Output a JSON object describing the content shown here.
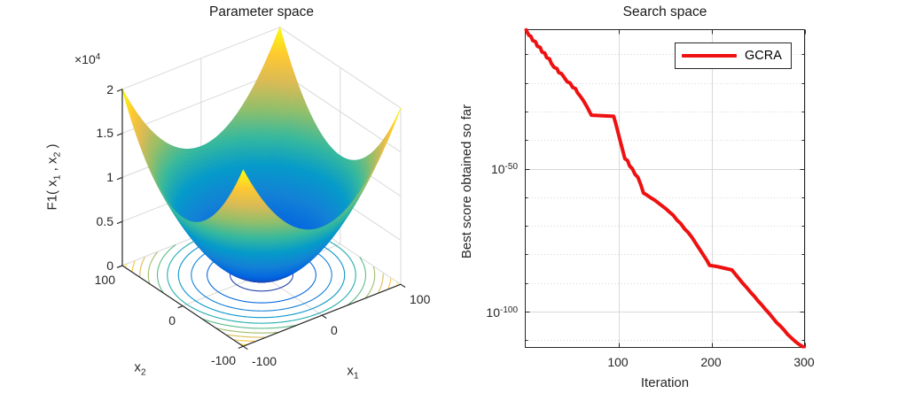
{
  "figure": {
    "background": "#ffffff"
  },
  "style": {
    "axis_color": "#262626",
    "grid_color": "#d9d9d9",
    "minor_grid_color": "#d4d4d4",
    "text_color": "#262626",
    "series_red": "#ee1111"
  },
  "left_plot": {
    "title": "Parameter space",
    "z_offset_label": {
      "base": "×10",
      "exp": "4"
    },
    "zlabel": {
      "p1": "F1( x",
      "sub1": "1",
      "p2": " , x",
      "sub2": "2",
      "p3": " )"
    },
    "x1label": {
      "base": "x",
      "sub": "1"
    },
    "x2label": {
      "base": "x",
      "sub": "2"
    },
    "z_ticks": [
      {
        "label": "0"
      },
      {
        "label": "0.5"
      },
      {
        "label": "1"
      },
      {
        "label": "1.5"
      },
      {
        "label": "2"
      }
    ],
    "x1_ticks": [
      {
        "label": "-100"
      },
      {
        "label": "0"
      },
      {
        "label": "100"
      }
    ],
    "x2_ticks": [
      {
        "label": "100"
      },
      {
        "label": "0"
      },
      {
        "label": "-100"
      }
    ]
  },
  "right_plot": {
    "title": "Search space",
    "xlabel": "Iteration",
    "ylabel": "Best score obtained so far",
    "x_ticks": [
      {
        "label": "100"
      },
      {
        "label": "200"
      },
      {
        "label": "300"
      }
    ],
    "y_ticks": [
      {
        "base": "10",
        "sup": "-50"
      },
      {
        "base": "10",
        "sup": "-100"
      }
    ],
    "legend": {
      "entries": [
        {
          "label": "GCRA",
          "color": "#ee1111"
        }
      ]
    }
  },
  "chart_data": [
    {
      "type": "surface3d",
      "title": "Parameter space",
      "function": "F1(x1,x2) = x1^2 + x2^2",
      "x1_range": [
        -100,
        100
      ],
      "x2_range": [
        -100,
        100
      ],
      "z_range": [
        0,
        20000
      ],
      "z_ticks": [
        0,
        5000,
        10000,
        15000,
        20000
      ],
      "x1_axis_ticks": [
        -100,
        0,
        100
      ],
      "x2_axis_ticks": [
        -100,
        0,
        100
      ],
      "view": {
        "azimuth": -37.5,
        "elevation": 30
      },
      "colormap": "parula",
      "colormap_stops": [
        "#352a87",
        "#0363e1",
        "#1481d6",
        "#069bca",
        "#38b99d",
        "#92bf6b",
        "#dabb56",
        "#fec832",
        "#f9fb0e"
      ],
      "floor_contour_levels": [
        1000,
        3000,
        5000,
        7000,
        9000,
        11000,
        13000,
        15000,
        17000,
        19000
      ],
      "grid": true
    },
    {
      "type": "line",
      "title": "Search space",
      "xlabel": "Iteration",
      "ylabel": "Best score obtained so far",
      "y_scale": "log10",
      "x_range": [
        0,
        300
      ],
      "y_range_exp": [
        -112.5,
        -1.4
      ],
      "x_major_ticks": [
        100,
        200,
        300
      ],
      "y_major_ticks_exp": [
        -50,
        -100
      ],
      "y_minor_ticks_exp": [
        -10,
        -20,
        -30,
        -40,
        -60,
        -70,
        -80,
        -90,
        -110
      ],
      "grid": {
        "major": "solid",
        "minor": "dotted"
      },
      "legend_position": "northeast",
      "series": [
        {
          "name": "GCRA",
          "color": "#ee1111",
          "line_width": 4,
          "points_iter_log10": [
            [
              1,
              -1.5
            ],
            [
              2,
              -2.2
            ],
            [
              4,
              -3.4
            ],
            [
              6,
              -3.7
            ],
            [
              8,
              -5.2
            ],
            [
              11,
              -5.6
            ],
            [
              13,
              -7.2
            ],
            [
              16,
              -7.6
            ],
            [
              18,
              -9.2
            ],
            [
              21,
              -9.6
            ],
            [
              23,
              -11.2
            ],
            [
              26,
              -11.6
            ],
            [
              28,
              -13.2
            ],
            [
              31,
              -14.6
            ],
            [
              34,
              -15
            ],
            [
              36,
              -16.4
            ],
            [
              39,
              -16.8
            ],
            [
              42,
              -18.2
            ],
            [
              45,
              -19.6
            ],
            [
              48,
              -20
            ],
            [
              51,
              -21.6
            ],
            [
              54,
              -22
            ],
            [
              56,
              -23.4
            ],
            [
              59,
              -24.6
            ],
            [
              62,
              -26
            ],
            [
              65,
              -27.6
            ],
            [
              68,
              -29.4
            ],
            [
              71,
              -31.3
            ],
            [
              95,
              -31.7
            ],
            [
              97,
              -34
            ],
            [
              99,
              -36.5
            ],
            [
              101,
              -39
            ],
            [
              103,
              -41.5
            ],
            [
              105,
              -44
            ],
            [
              107,
              -46.5
            ],
            [
              110,
              -47.2
            ],
            [
              112,
              -49
            ],
            [
              115,
              -50
            ],
            [
              118,
              -52
            ],
            [
              121,
              -53
            ],
            [
              124,
              -55.5
            ],
            [
              127,
              -58.5
            ],
            [
              131,
              -59.3
            ],
            [
              135,
              -60.2
            ],
            [
              139,
              -61
            ],
            [
              143,
              -62
            ],
            [
              147,
              -63
            ],
            [
              151,
              -64
            ],
            [
              155,
              -65.2
            ],
            [
              159,
              -66.3
            ],
            [
              163,
              -68
            ],
            [
              167,
              -69.2
            ],
            [
              171,
              -71
            ],
            [
              175,
              -72.3
            ],
            [
              179,
              -74
            ],
            [
              183,
              -76
            ],
            [
              187,
              -78
            ],
            [
              191,
              -80
            ],
            [
              195,
              -82
            ],
            [
              198,
              -83.8
            ],
            [
              206,
              -84.2
            ],
            [
              214,
              -84.8
            ],
            [
              222,
              -85.4
            ],
            [
              226,
              -87
            ],
            [
              230,
              -88.6
            ],
            [
              234,
              -90.2
            ],
            [
              238,
              -91.6
            ],
            [
              242,
              -93.2
            ],
            [
              246,
              -94.6
            ],
            [
              250,
              -96.2
            ],
            [
              254,
              -97.6
            ],
            [
              258,
              -99.2
            ],
            [
              262,
              -100.6
            ],
            [
              266,
              -102.2
            ],
            [
              270,
              -103.8
            ],
            [
              274,
              -105
            ],
            [
              278,
              -106.4
            ],
            [
              282,
              -108
            ],
            [
              286,
              -109.2
            ],
            [
              290,
              -110.4
            ],
            [
              294,
              -111.4
            ],
            [
              298,
              -112.2
            ],
            [
              300,
              -112.4
            ]
          ]
        }
      ]
    }
  ]
}
